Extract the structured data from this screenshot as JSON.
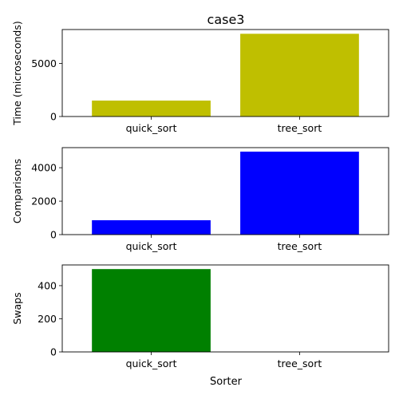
{
  "figure": {
    "title": "case3",
    "xlabel": "Sorter"
  },
  "chart_data": [
    {
      "type": "bar",
      "title": "case3",
      "xlabel": "",
      "ylabel": "Time (microseconds)",
      "categories": [
        "quick_sort",
        "tree_sort"
      ],
      "values": [
        1500,
        7800
      ],
      "ylim": [
        0,
        8200
      ],
      "yticks": [
        0,
        5000
      ],
      "ytick_labels": [
        "0",
        "5000"
      ],
      "color": "#bfbf00",
      "grid": false,
      "legend": "none"
    },
    {
      "type": "bar",
      "title": "",
      "xlabel": "",
      "ylabel": "Comparisons",
      "categories": [
        "quick_sort",
        "tree_sort"
      ],
      "values": [
        860,
        4960
      ],
      "ylim": [
        0,
        5200
      ],
      "yticks": [
        0,
        2000,
        4000
      ],
      "ytick_labels": [
        "0",
        "2000",
        "4000"
      ],
      "color": "#0000ff",
      "grid": false,
      "legend": "none"
    },
    {
      "type": "bar",
      "title": "",
      "xlabel": "Sorter",
      "ylabel": "Swaps",
      "categories": [
        "quick_sort",
        "tree_sort"
      ],
      "values": [
        500,
        0
      ],
      "ylim": [
        0,
        525
      ],
      "yticks": [
        0,
        200,
        400
      ],
      "ytick_labels": [
        "0",
        "200",
        "400"
      ],
      "color": "#008000",
      "grid": false,
      "legend": "none"
    }
  ]
}
